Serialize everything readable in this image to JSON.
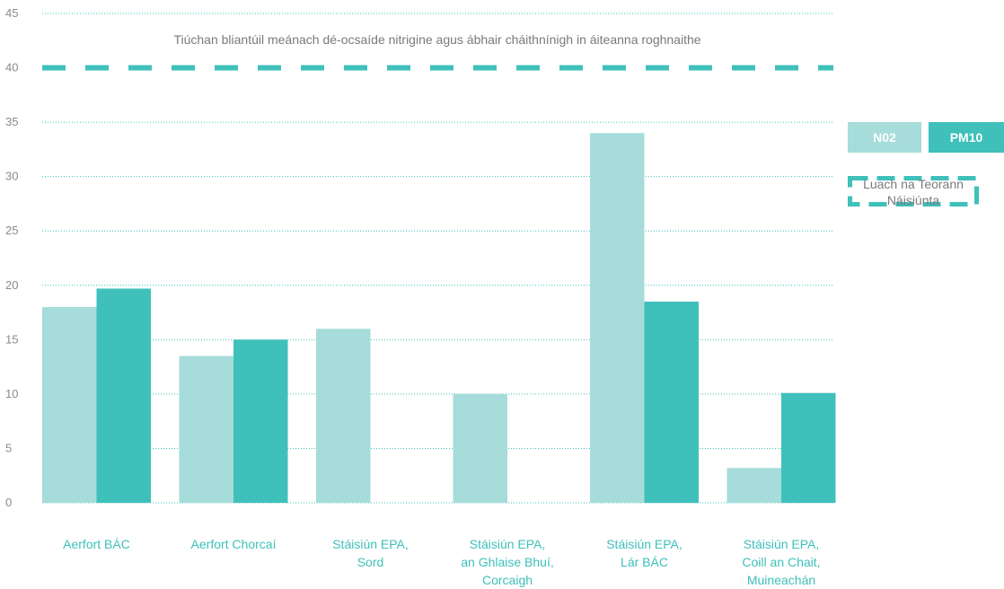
{
  "chart_data": {
    "type": "bar",
    "title": "Tiúchan bliantúil meánach dé-ocsaíde nitrigine agus ábhair cháithnínigh in áiteanna roghnaithe",
    "categories": [
      [
        "Aerfort BÁC"
      ],
      [
        "Aerfort Chorcaí"
      ],
      [
        "Stáisiún EPA,",
        "Sord"
      ],
      [
        "Stáisiún EPA,",
        "an Ghlaise Bhuí,",
        "Corcaigh"
      ],
      [
        "Stáisiún EPA,",
        "Lár BÁC"
      ],
      [
        "Stáisiún EPA,",
        "Coill an Chait,",
        "Muineachán"
      ]
    ],
    "series": [
      {
        "name": "N02",
        "color": "#a6dcd9",
        "values": [
          18,
          13.5,
          16,
          10,
          34,
          3.2
        ]
      },
      {
        "name": "PM10",
        "color": "#3fc0bb",
        "values": [
          19.7,
          15,
          null,
          null,
          18.5,
          10.1
        ]
      }
    ],
    "limit_line": {
      "value": 40,
      "label": "Luach na Teorann Náisiúnta",
      "color": "#3fc0bb"
    },
    "y_ticks": [
      0,
      5,
      10,
      15,
      20,
      25,
      30,
      35,
      40,
      45
    ],
    "ylim": [
      0,
      45
    ],
    "xlabel": "",
    "ylabel": "",
    "grid": true,
    "legend_placement": "right"
  }
}
